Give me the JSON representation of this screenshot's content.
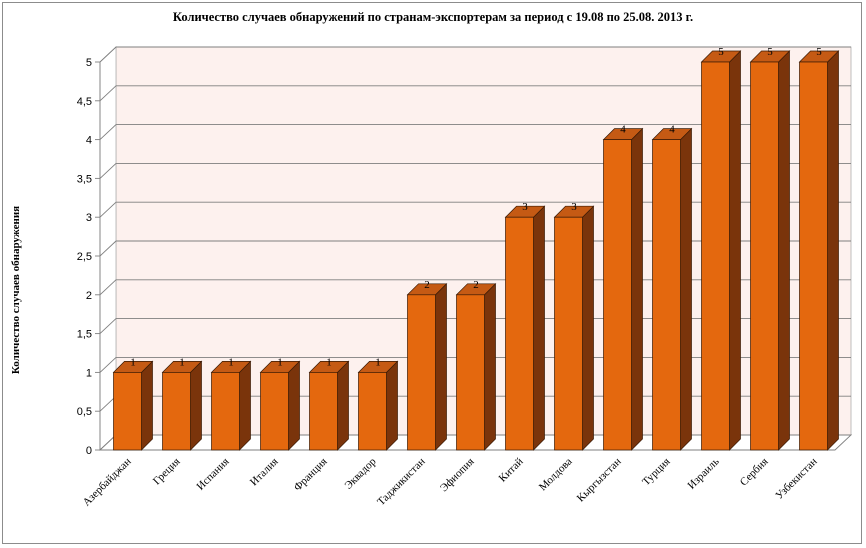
{
  "chart_data": {
    "type": "bar",
    "title": "Количество случаев обнаружений по странам-экспортерам за период с 19.08 по 25.08. 2013 г.",
    "xlabel": "",
    "ylabel": "Количество случаев обнаружения",
    "ylim": [
      0,
      5
    ],
    "y_ticks": [
      "0",
      "0,5",
      "1",
      "1,5",
      "2",
      "2,5",
      "3",
      "3,5",
      "4",
      "4,5",
      "5"
    ],
    "categories": [
      "Азербайджан",
      "Греция",
      "Испания",
      "Италия",
      "Франция",
      "Эквадор",
      "Таджикистан",
      "Эфиопия",
      "Китай",
      "Молдова",
      "Кыргызстан",
      "Турция",
      "Израиль",
      "Сербия",
      "Узбекистан"
    ],
    "values": [
      1,
      1,
      1,
      1,
      1,
      1,
      2,
      2,
      3,
      3,
      4,
      4,
      5,
      5,
      5
    ],
    "bar_color": "#e4680e",
    "bar_side_color": "#7a340b",
    "bar_top_color": "#c55a14",
    "wall_color": "#fdf1ee",
    "grid": true,
    "legend": "none"
  }
}
